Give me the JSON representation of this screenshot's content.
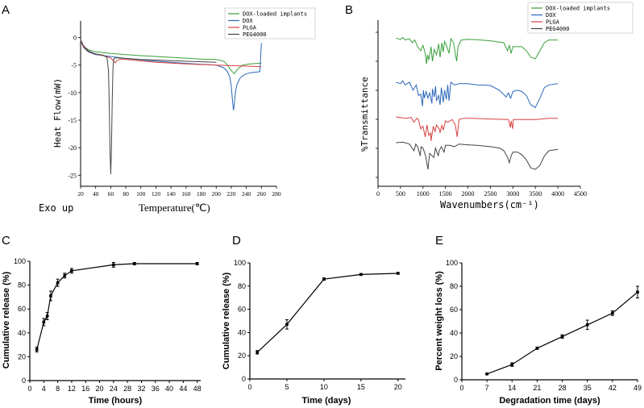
{
  "chart_data": [
    {
      "panel": "A",
      "type": "line",
      "xlabel": "Temperature(℃)",
      "ylabel": "Heat Flow(mW)",
      "annotation": "Exo up",
      "xlim": [
        20,
        280
      ],
      "ylim": [
        -27,
        3
      ],
      "xticks": [
        20,
        40,
        60,
        80,
        100,
        120,
        140,
        160,
        180,
        200,
        220,
        240,
        260,
        280
      ],
      "yticks": [
        0,
        -5,
        -10,
        -15,
        -20,
        -25
      ],
      "legend": [
        "DOX-loaded implants",
        "DOX",
        "PLGA",
        "PEG4000"
      ],
      "series": [
        {
          "name": "DOX-loaded implants",
          "color": "#3a9e3a",
          "x": [
            20,
            24,
            30,
            40,
            60,
            80,
            100,
            140,
            180,
            200,
            210,
            215,
            220,
            224,
            228,
            235,
            245,
            255,
            260
          ],
          "y": [
            -0.5,
            -1.6,
            -2.2,
            -2.6,
            -2.9,
            -3.1,
            -3.3,
            -3.6,
            -3.9,
            -4.0,
            -4.3,
            -5.0,
            -6.0,
            -6.6,
            -5.8,
            -5.0,
            -4.8,
            -4.7,
            -4.7
          ]
        },
        {
          "name": "DOX",
          "color": "#2a66b8",
          "x": [
            20,
            24,
            30,
            40,
            80,
            120,
            160,
            200,
            210,
            215,
            218,
            220,
            221,
            222,
            223,
            224,
            225,
            226,
            228,
            232,
            238,
            245,
            252,
            258,
            259,
            260
          ],
          "y": [
            -0.6,
            -1.8,
            -2.6,
            -3.1,
            -3.8,
            -4.3,
            -4.7,
            -5.0,
            -5.5,
            -6.2,
            -7.2,
            -8.8,
            -10.5,
            -12.0,
            -13.2,
            -12.2,
            -10.6,
            -9.5,
            -8.4,
            -7.3,
            -6.7,
            -6.4,
            -6.3,
            -6.2,
            -3.5,
            -1.0
          ]
        },
        {
          "name": "PLGA",
          "color": "#d94040",
          "x": [
            20,
            24,
            30,
            40,
            50,
            60,
            64,
            66,
            68,
            72,
            80,
            120,
            160,
            200,
            240,
            260
          ],
          "y": [
            -0.5,
            -1.7,
            -2.5,
            -3.0,
            -3.3,
            -3.7,
            -4.3,
            -4.6,
            -4.2,
            -3.9,
            -4.0,
            -4.5,
            -4.8,
            -5.0,
            -5.2,
            -5.3
          ]
        },
        {
          "name": "PEG4000",
          "color": "#444444",
          "x": [
            20,
            24,
            30,
            40,
            50,
            55,
            57,
            58,
            59,
            60,
            61,
            62,
            63,
            64,
            66,
            70,
            100,
            140,
            180,
            200
          ],
          "y": [
            -0.4,
            -1.5,
            -2.4,
            -3.0,
            -3.2,
            -3.6,
            -6.0,
            -12.0,
            -20.0,
            -24.8,
            -20.0,
            -11.0,
            -5.5,
            -3.9,
            -3.7,
            -3.7,
            -4.0,
            -4.2,
            -4.4,
            -4.5
          ]
        }
      ]
    },
    {
      "panel": "B",
      "type": "line",
      "xlabel": "Wavenumbers(cm⁻¹)",
      "ylabel": "%Transmittance",
      "xlim": [
        0,
        4500
      ],
      "xticks": [
        0,
        500,
        1000,
        1500,
        2000,
        2500,
        3000,
        3500,
        4000,
        4500
      ],
      "legend": [
        "DOX-loaded implants",
        "DOX",
        "PLGA",
        "PEG4000"
      ],
      "series": [
        {
          "name": "DOX-loaded implants",
          "color": "#3a9e3a",
          "offset": 3.0,
          "x": [
            400,
            500,
            550,
            600,
            700,
            760,
            820,
            880,
            950,
            1000,
            1050,
            1080,
            1100,
            1130,
            1180,
            1210,
            1250,
            1300,
            1350,
            1380,
            1420,
            1450,
            1480,
            1520,
            1580,
            1620,
            1680,
            1720,
            1750,
            1780,
            1850,
            2000,
            2200,
            2500,
            2800,
            2880,
            2920,
            2960,
            3000,
            3200,
            3300,
            3400,
            3500,
            3600,
            3700,
            3800,
            4000
          ],
          "y": [
            0.02,
            -0.03,
            0.05,
            -0.05,
            0.0,
            -0.15,
            -0.05,
            -0.3,
            -0.45,
            -0.25,
            -0.55,
            -0.95,
            -0.6,
            -0.8,
            -0.3,
            -0.85,
            -0.4,
            -0.6,
            -0.2,
            -0.7,
            -0.15,
            -0.5,
            -0.1,
            -0.25,
            -0.55,
            0.0,
            -0.15,
            -0.55,
            -0.85,
            -0.3,
            -0.05,
            -0.02,
            -0.04,
            -0.08,
            -0.15,
            -0.45,
            -0.25,
            -0.55,
            -0.3,
            -0.3,
            -0.45,
            -0.7,
            -0.75,
            -0.45,
            -0.15,
            -0.05,
            -0.05
          ]
        },
        {
          "name": "DOX",
          "color": "#2a66b8",
          "offset": 2.0,
          "x": [
            400,
            500,
            550,
            600,
            700,
            780,
            850,
            900,
            950,
            990,
            1010,
            1030,
            1070,
            1110,
            1150,
            1200,
            1210,
            1250,
            1280,
            1300,
            1350,
            1380,
            1410,
            1450,
            1480,
            1520,
            1550,
            1580,
            1620,
            1700,
            1800,
            2000,
            2200,
            2500,
            2700,
            2850,
            2900,
            2950,
            3000,
            3100,
            3200,
            3300,
            3400,
            3500,
            3600,
            3700,
            3800,
            4000
          ],
          "y": [
            0.0,
            -0.05,
            0.05,
            -0.1,
            0.0,
            -0.3,
            -0.1,
            -0.5,
            -0.45,
            -0.9,
            -0.3,
            -0.6,
            -0.35,
            -0.6,
            -0.4,
            -0.8,
            -0.25,
            -0.55,
            -0.15,
            -0.7,
            -0.5,
            -0.85,
            -0.2,
            -0.75,
            -0.3,
            -0.65,
            -0.1,
            -0.7,
            0.0,
            -0.1,
            -0.05,
            -0.05,
            -0.1,
            -0.12,
            -0.3,
            -0.55,
            -0.4,
            -0.6,
            -0.35,
            -0.3,
            -0.35,
            -0.5,
            -0.85,
            -0.95,
            -0.6,
            -0.2,
            -0.1,
            -0.05
          ]
        },
        {
          "name": "PLGA",
          "color": "#d94040",
          "offset": 1.0,
          "x": [
            400,
            600,
            740,
            800,
            860,
            900,
            950,
            1000,
            1050,
            1090,
            1130,
            1170,
            1180,
            1230,
            1270,
            1300,
            1360,
            1380,
            1420,
            1450,
            1500,
            1550,
            1650,
            1720,
            1760,
            1800,
            1900,
            2100,
            2500,
            2900,
            2945,
            2960,
            2995,
            3010,
            3200,
            3500,
            3800,
            4000
          ],
          "y": [
            0.0,
            -0.05,
            -0.02,
            -0.2,
            -0.05,
            -0.1,
            -0.45,
            -0.35,
            -0.75,
            -0.3,
            -0.7,
            -0.6,
            -0.9,
            -0.35,
            -0.55,
            -0.3,
            -0.45,
            -0.6,
            -0.3,
            -0.5,
            -0.15,
            -0.2,
            -0.1,
            -0.3,
            -0.75,
            -0.1,
            -0.05,
            -0.05,
            -0.08,
            -0.1,
            -0.4,
            -0.15,
            -0.45,
            -0.1,
            -0.1,
            -0.1,
            -0.05,
            -0.05
          ]
        },
        {
          "name": "PEG4000",
          "color": "#444444",
          "offset": 0.0,
          "x": [
            400,
            550,
            700,
            800,
            840,
            880,
            940,
            960,
            1000,
            1060,
            1110,
            1150,
            1240,
            1280,
            1340,
            1360,
            1410,
            1470,
            1500,
            1600,
            1700,
            1800,
            2000,
            2200,
            2500,
            2700,
            2800,
            2880,
            2920,
            2960,
            3000,
            3100,
            3200,
            3300,
            3400,
            3500,
            3600,
            3700,
            3800,
            4000
          ],
          "y": [
            0.0,
            0.02,
            -0.05,
            -0.3,
            -0.05,
            -0.15,
            -0.5,
            -0.15,
            -0.2,
            -0.5,
            -1.0,
            -0.4,
            -0.55,
            -0.2,
            -0.5,
            -0.3,
            -0.15,
            -0.35,
            -0.1,
            -0.1,
            -0.15,
            -0.05,
            -0.08,
            -0.1,
            -0.15,
            -0.2,
            -0.3,
            -0.55,
            -0.75,
            -0.5,
            -0.35,
            -0.35,
            -0.45,
            -0.65,
            -0.95,
            -1.0,
            -0.85,
            -0.5,
            -0.3,
            -0.25
          ]
        }
      ]
    },
    {
      "panel": "C",
      "type": "line",
      "xlabel": "Time (hours)",
      "ylabel": "Cumulative release (%)",
      "xlim": [
        0,
        49
      ],
      "ylim": [
        0,
        100
      ],
      "xticks": [
        0,
        4,
        8,
        12,
        16,
        20,
        24,
        28,
        32,
        36,
        40,
        44,
        48
      ],
      "yticks": [
        0,
        20,
        40,
        60,
        80,
        100
      ],
      "series": [
        {
          "name": "release",
          "x": [
            2,
            4,
            5,
            6,
            8,
            10,
            12,
            24,
            30,
            48
          ],
          "y": [
            26,
            49,
            54,
            71,
            82,
            88,
            92,
            97,
            98,
            98
          ],
          "err": [
            2,
            3,
            3,
            4,
            3,
            2,
            2,
            2,
            1,
            1
          ]
        }
      ]
    },
    {
      "panel": "D",
      "type": "line",
      "xlabel": "Time  (days)",
      "ylabel": "Cumulative release (%)",
      "xlim": [
        0,
        21
      ],
      "ylim": [
        0,
        100
      ],
      "xticks": [
        0,
        5,
        10,
        15,
        20
      ],
      "yticks": [
        0,
        20,
        40,
        60,
        80,
        100
      ],
      "series": [
        {
          "name": "release",
          "x": [
            1,
            5,
            10,
            15,
            20
          ],
          "y": [
            23,
            47,
            86,
            90,
            91
          ],
          "err": [
            1.5,
            4,
            1,
            0.5,
            0.5
          ]
        }
      ]
    },
    {
      "panel": "E",
      "type": "line",
      "xlabel": "Degradation time  (days)",
      "ylabel": "Percent weight loss (%)",
      "xlim": [
        0,
        49
      ],
      "ylim": [
        0,
        100
      ],
      "xticks": [
        0,
        7,
        14,
        21,
        28,
        35,
        42,
        49
      ],
      "yticks": [
        0,
        20,
        40,
        60,
        80,
        100
      ],
      "series": [
        {
          "name": "weight loss",
          "x": [
            7,
            14,
            21,
            28,
            35,
            42,
            49
          ],
          "y": [
            5,
            13,
            27,
            37,
            47,
            57,
            75
          ],
          "err": [
            0.5,
            1.5,
            1,
            1.5,
            4,
            2,
            5
          ]
        }
      ]
    }
  ]
}
